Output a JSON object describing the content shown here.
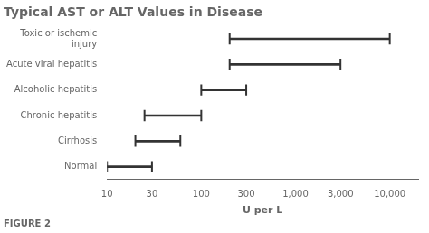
{
  "chart_data": {
    "type": "range",
    "orientation": "horizontal",
    "title": "Typical AST or ALT Values in Disease",
    "xlabel": "U per L",
    "annotations": [
      "FIGURE 2"
    ],
    "categories": [
      "Toxic or ischemic\ninjury",
      "Acute viral hepatitis",
      "Alcoholic hepatitis",
      "Chronic hepatitis",
      "Cirrhosis",
      "Normal"
    ],
    "values": [
      [
        200,
        10000
      ],
      [
        200,
        3000
      ],
      [
        100,
        300
      ],
      [
        25,
        100
      ],
      [
        20,
        60
      ],
      [
        10,
        30
      ]
    ],
    "color": "#333333",
    "log": "x",
    "xlim": [
      10,
      20000
    ],
    "xticks": [
      10,
      30,
      100,
      300,
      {
        "value": 1000,
        "label": "1,000"
      },
      {
        "value": 3000,
        "label": "3,000"
      },
      {
        "value": 10000,
        "label": "10,000"
      }
    ],
    "grid": false
  }
}
